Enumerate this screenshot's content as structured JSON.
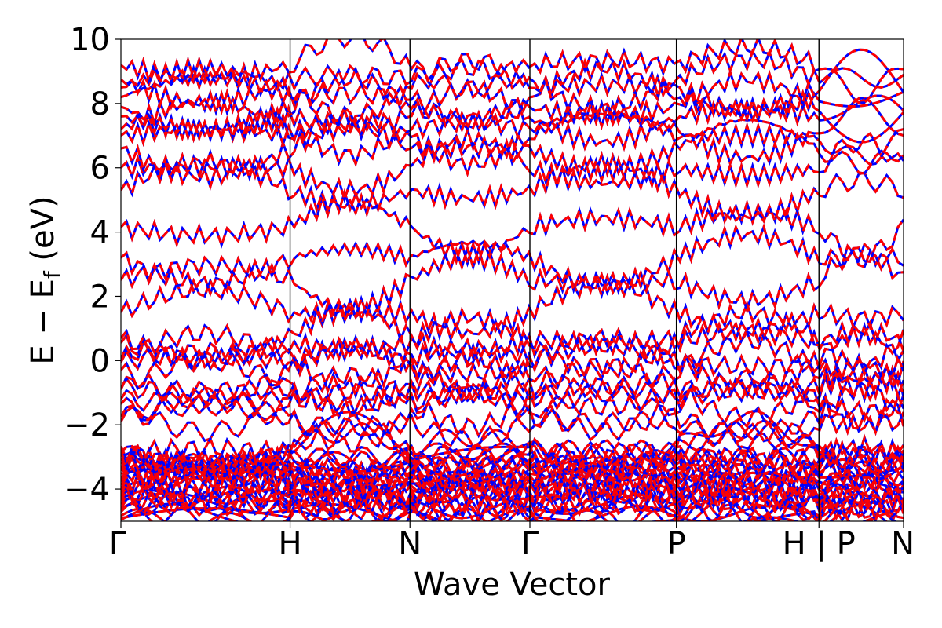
{
  "chart_data": {
    "type": "line",
    "title": "",
    "xlabel": "Wave Vector",
    "ylabel": {
      "main": "E − E",
      "sub": "f",
      "unit": " (eV)"
    },
    "ylim": [
      -5,
      10
    ],
    "yticks": [
      {
        "value": -4,
        "label": "−4"
      },
      {
        "value": -2,
        "label": "−2"
      },
      {
        "value": 0,
        "label": "0"
      },
      {
        "value": 2,
        "label": "2"
      },
      {
        "value": 4,
        "label": "4"
      },
      {
        "value": 6,
        "label": "6"
      },
      {
        "value": 8,
        "label": "8"
      },
      {
        "value": 10,
        "label": "10"
      }
    ],
    "xlim": [
      0,
      1
    ],
    "kpoints": [
      {
        "position": 0.0,
        "label": "Γ"
      },
      {
        "position": 0.2424,
        "label": "H"
      },
      {
        "position": 0.4141,
        "label": "N"
      },
      {
        "position": 0.5859,
        "label": "Γ"
      },
      {
        "position": 0.7958,
        "label": "P"
      },
      {
        "position": 1.0,
        "label": "H | P"
      },
      {
        "position": 1.1212,
        "label": "N"
      }
    ],
    "segment_boundaries": [
      0.2424,
      0.4141,
      0.5859,
      0.7958,
      1.0
    ],
    "series": [
      {
        "color": "#0000ff",
        "style": "solid"
      },
      {
        "color": "#ff0000",
        "style": "dashed"
      }
    ],
    "grid": false,
    "bands_approx_energies_at_gamma": [
      -4.9,
      -4.6,
      -4.3,
      -4.0,
      -3.7,
      -3.4,
      -3.1,
      -2.85,
      -1.9,
      -1.75,
      -1.35,
      -1.2,
      -0.9,
      -0.85,
      -0.3,
      -0.05,
      0.05,
      0.55,
      0.7,
      1.5,
      2.5,
      3.2,
      4.15,
      5.3,
      6.0,
      6.6,
      7.0,
      7.2,
      7.6,
      7.9,
      8.2,
      8.5,
      8.75,
      9.2
    ]
  }
}
